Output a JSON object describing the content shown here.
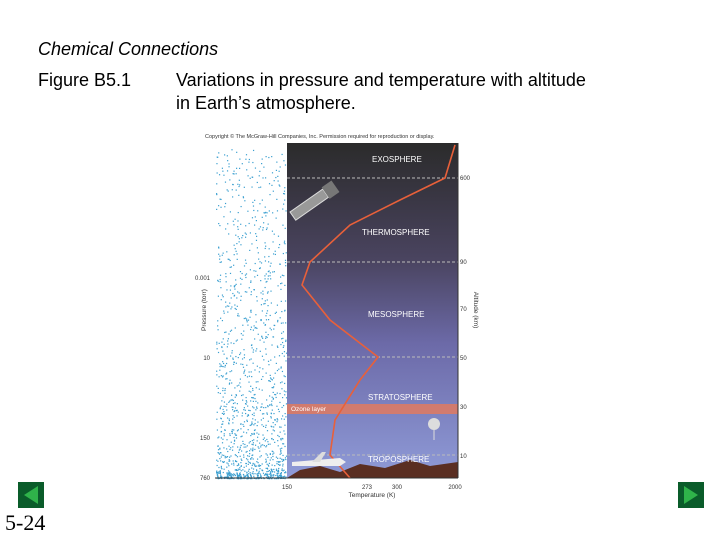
{
  "header": {
    "title": "Chemical Connections",
    "figure_label": "Figure B5.1",
    "caption_line1": "Variations in pressure and temperature with altitude",
    "caption_line2": "in Earth’s atmosphere."
  },
  "figure": {
    "copyright": "Copyright © The McGraw-Hill Companies, Inc. Permission required for reproduction or display.",
    "layers": [
      "EXOSPHERE",
      "THERMOSPHERE",
      "MESOSPHERE",
      "STRATOSPHERE",
      "TROPOSPHERE"
    ],
    "ozone_label": "Ozone layer",
    "altitude_title": "Altitude (km)",
    "altitude_ticks": [
      "600",
      "90",
      "70",
      "50",
      "30",
      "10"
    ],
    "pressure_title": "Pressure (torr)",
    "pressure_ticks": [
      "0.001",
      "10",
      "150",
      "760"
    ],
    "temperature_title": "Temperature (K)",
    "temperature_ticks": [
      "150",
      "273",
      "300",
      "2000"
    ]
  },
  "footer": {
    "slide_number": "5-24"
  }
}
